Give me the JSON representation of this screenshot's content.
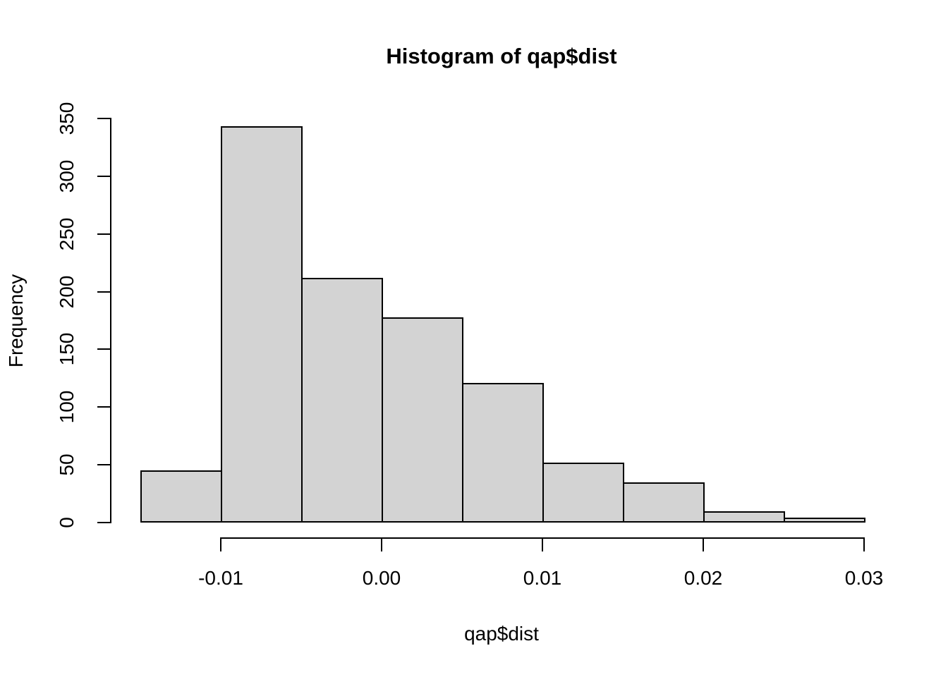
{
  "chart_data": {
    "type": "bar",
    "subtype": "histogram",
    "title": "Histogram of qap$dist",
    "xlabel": "qap$dist",
    "ylabel": "Frequency",
    "bin_edges": [
      -0.015,
      -0.01,
      -0.005,
      0.0,
      0.005,
      0.01,
      0.015,
      0.02,
      0.025,
      0.03
    ],
    "counts": [
      45,
      343,
      212,
      178,
      121,
      52,
      35,
      10,
      4
    ],
    "x_ticks": [
      {
        "value": -0.01,
        "label": "-0.01"
      },
      {
        "value": 0.0,
        "label": "0.00"
      },
      {
        "value": 0.01,
        "label": "0.01"
      },
      {
        "value": 0.02,
        "label": "0.02"
      },
      {
        "value": 0.03,
        "label": "0.03"
      }
    ],
    "y_ticks": [
      {
        "value": 0,
        "label": "0"
      },
      {
        "value": 50,
        "label": "50"
      },
      {
        "value": 100,
        "label": "100"
      },
      {
        "value": 150,
        "label": "150"
      },
      {
        "value": 200,
        "label": "200"
      },
      {
        "value": 250,
        "label": "250"
      },
      {
        "value": 300,
        "label": "300"
      },
      {
        "value": 350,
        "label": "350"
      }
    ],
    "xlim": [
      -0.01,
      0.03
    ],
    "ylim": [
      0,
      350
    ],
    "grid": false,
    "legend": "none",
    "bar_fill": "#d3d3d3",
    "bar_border": "#000000",
    "background": "#ffffff",
    "text_color": "#000000"
  }
}
